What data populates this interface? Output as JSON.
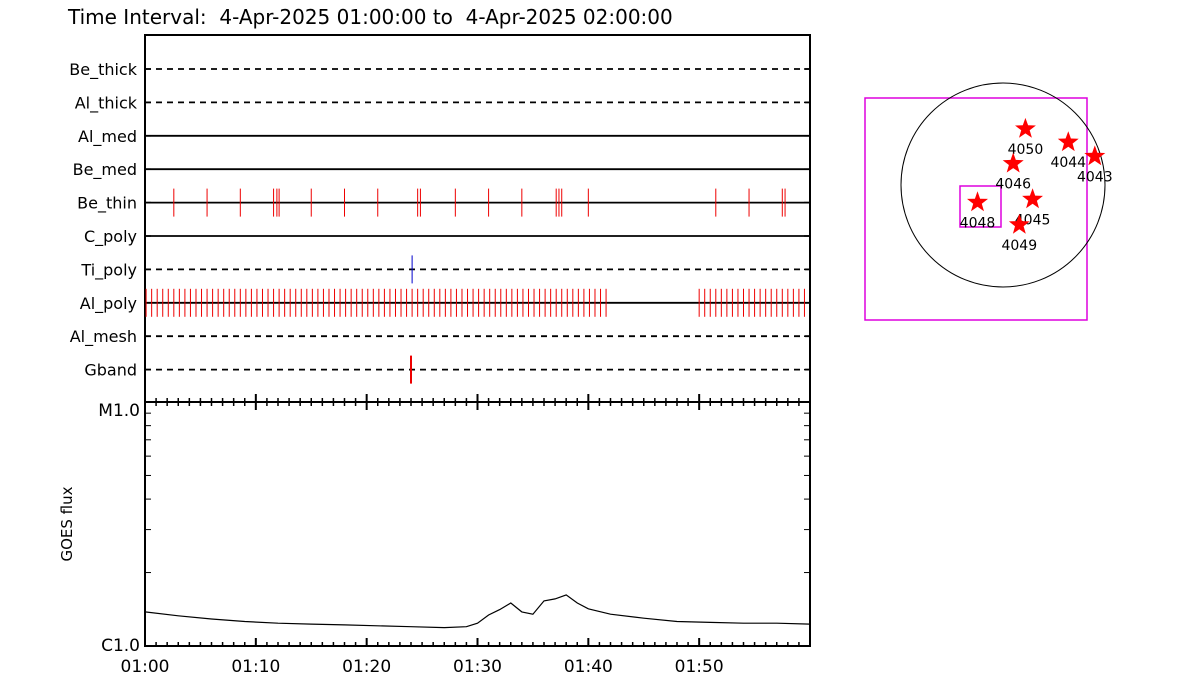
{
  "title": "Time Interval:  4-Apr-2025 01:00:00 to  4-Apr-2025 02:00:00",
  "colors": {
    "event_red": "#ee0000",
    "event_blue": "#0000cc",
    "frame_magenta": "#dd00dd",
    "star_red": "#ff0000",
    "line": "#000000"
  },
  "chart_data": [
    {
      "type": "line",
      "name": "filter-events",
      "x_range_minutes": [
        0,
        60
      ],
      "channels": [
        {
          "label": "Be_thick",
          "line": "dashed",
          "events": []
        },
        {
          "label": "Al_thick",
          "line": "dashed",
          "events": []
        },
        {
          "label": "Al_med",
          "line": "solid",
          "events": []
        },
        {
          "label": "Be_med",
          "line": "solid",
          "events": []
        },
        {
          "label": "Be_thin",
          "line": "solid",
          "events_color": "red",
          "events": [
            2.6,
            5.6,
            8.6,
            11.6,
            11.9,
            12.1,
            15.0,
            18.0,
            21.0,
            24.6,
            24.85,
            28.0,
            31.0,
            34.0,
            37.1,
            37.35,
            37.6,
            40.0,
            51.5,
            54.5,
            57.5,
            57.75
          ]
        },
        {
          "label": "C_poly",
          "line": "solid",
          "events": []
        },
        {
          "label": "Ti_poly",
          "line": "dashed",
          "events_color": "blue",
          "events": [
            24.1
          ]
        },
        {
          "label": "Al_poly",
          "line": "solid",
          "events_color": "red",
          "events_dense_ranges": [
            [
              0.1,
              42.0
            ],
            [
              50.0,
              59.8
            ]
          ],
          "events_spacing_min": 0.5
        },
        {
          "label": "Al_mesh",
          "line": "dashed",
          "events": []
        },
        {
          "label": "Gband",
          "line": "dashed",
          "events_color": "red",
          "events": [
            24.0
          ]
        }
      ]
    },
    {
      "type": "line",
      "name": "goes-flux",
      "ylabel": "GOES flux",
      "y_tick_labels": [
        "C1.0",
        "M1.0"
      ],
      "ylim_log_watts": [
        1e-06,
        1e-05
      ],
      "x_tick_labels": [
        "01:00",
        "01:10",
        "01:20",
        "01:30",
        "01:40",
        "01:50"
      ],
      "x_ticks_minutes": [
        0,
        10,
        20,
        30,
        40,
        50
      ],
      "x": [
        0,
        3,
        6,
        9,
        12,
        15,
        18,
        21,
        24,
        27,
        29,
        30,
        31,
        32,
        33,
        34,
        35,
        36,
        37,
        38,
        39,
        40,
        42,
        45,
        48,
        51,
        54,
        57,
        60
      ],
      "y": [
        1.38e-06,
        1.33e-06,
        1.29e-06,
        1.26e-06,
        1.24e-06,
        1.23e-06,
        1.22e-06,
        1.21e-06,
        1.2e-06,
        1.19e-06,
        1.2e-06,
        1.24e-06,
        1.34e-06,
        1.41e-06,
        1.5e-06,
        1.38e-06,
        1.35e-06,
        1.53e-06,
        1.56e-06,
        1.62e-06,
        1.5e-06,
        1.42e-06,
        1.35e-06,
        1.3e-06,
        1.26e-06,
        1.25e-06,
        1.24e-06,
        1.24e-06,
        1.23e-06
      ]
    }
  ],
  "sun_map": {
    "regions": [
      {
        "label": "4050",
        "dx": 0.22,
        "dy": -0.55
      },
      {
        "label": "4044",
        "dx": 0.64,
        "dy": -0.42
      },
      {
        "label": "4043",
        "dx": 0.9,
        "dy": -0.28
      },
      {
        "label": "4046",
        "dx": 0.1,
        "dy": -0.21
      },
      {
        "label": "4045",
        "dx": 0.29,
        "dy": 0.14
      },
      {
        "label": "4048",
        "dx": -0.25,
        "dy": 0.17
      },
      {
        "label": "4049",
        "dx": 0.16,
        "dy": 0.39
      }
    ]
  }
}
